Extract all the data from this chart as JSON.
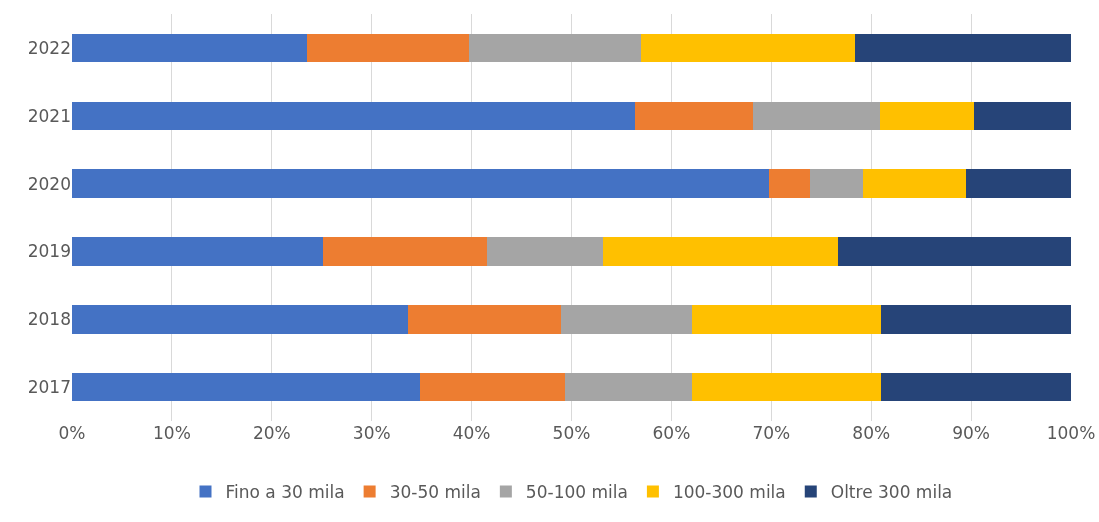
{
  "chart_data": {
    "type": "bar",
    "orientation": "horizontal",
    "stacked": true,
    "categories": [
      "2022",
      "2021",
      "2020",
      "2019",
      "2018",
      "2017"
    ],
    "series": [
      {
        "name": "Fino a 30 mila",
        "color": "#4472c4",
        "values": [
          23.5,
          56.4,
          69.8,
          25.1,
          33.6,
          34.8
        ]
      },
      {
        "name": "30-50 mila",
        "color": "#ed7d31",
        "values": [
          16.2,
          11.8,
          4.1,
          16.4,
          15.3,
          14.5
        ]
      },
      {
        "name": "50-100 mila",
        "color": "#a5a5a5",
        "values": [
          17.3,
          12.7,
          5.3,
          11.7,
          13.2,
          12.8
        ]
      },
      {
        "name": "100-300 mila",
        "color": "#ffc000",
        "values": [
          21.4,
          9.4,
          10.3,
          23.5,
          18.9,
          18.9
        ]
      },
      {
        "name": "Oltre 300 mila",
        "color": "#264478",
        "values": [
          21.6,
          9.7,
          10.5,
          23.3,
          19.0,
          19.0
        ]
      }
    ],
    "xlim": [
      0,
      100
    ],
    "xticks": [
      {
        "value": 0,
        "label": "0%"
      },
      {
        "value": 10,
        "label": "10%"
      },
      {
        "value": 20,
        "label": "20%"
      },
      {
        "value": 30,
        "label": "30%"
      },
      {
        "value": 40,
        "label": "40%"
      },
      {
        "value": 50,
        "label": "50%"
      },
      {
        "value": 60,
        "label": "60%"
      },
      {
        "value": 70,
        "label": "70%"
      },
      {
        "value": 80,
        "label": "80%"
      },
      {
        "value": 90,
        "label": "90%"
      },
      {
        "value": 100,
        "label": "100%"
      }
    ],
    "grid": "x",
    "legend": "bottom"
  }
}
